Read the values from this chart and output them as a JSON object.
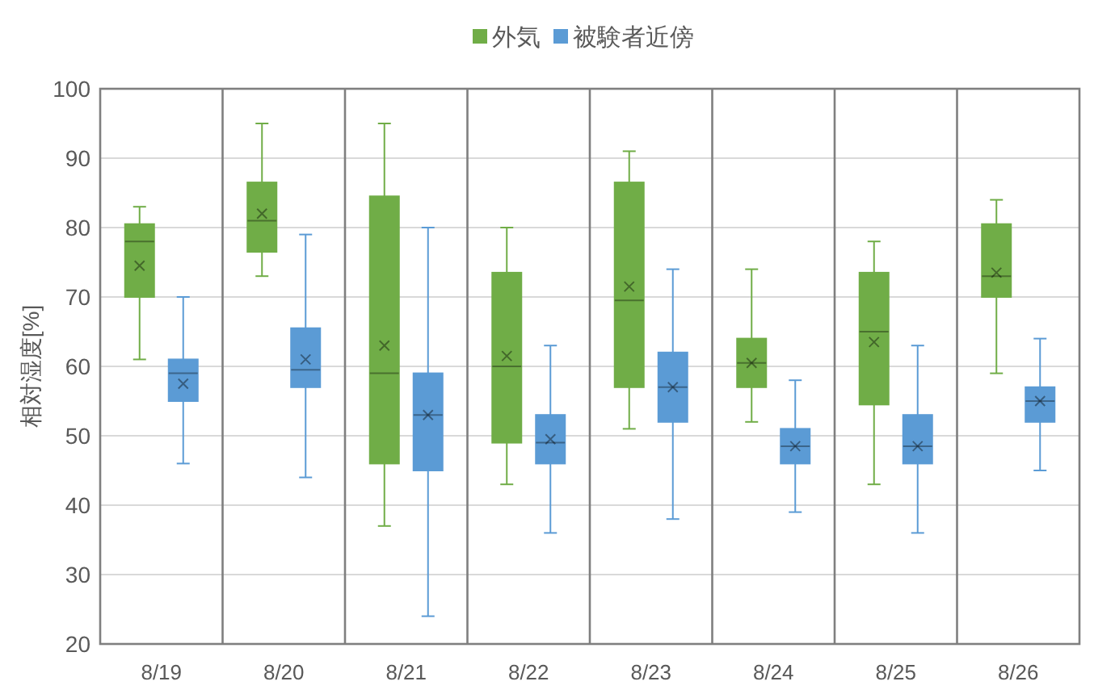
{
  "chart_data": {
    "type": "box",
    "categories": [
      "8/19",
      "8/20",
      "8/21",
      "8/22",
      "8/23",
      "8/24",
      "8/25",
      "8/26"
    ],
    "ylabel": "相対湿度[%]",
    "ylim": [
      20,
      100
    ],
    "yticks": [
      20,
      30,
      40,
      50,
      60,
      70,
      80,
      90,
      100
    ],
    "grid": true,
    "legend": "top",
    "series": [
      {
        "name": "外気",
        "color": "#70ad47",
        "boxes": [
          {
            "low": 61,
            "q1": 70,
            "median": 78,
            "q3": 80.5,
            "high": 83,
            "mean": 74.5
          },
          {
            "low": 73,
            "q1": 76.5,
            "median": 81,
            "q3": 86.5,
            "high": 95,
            "mean": 82
          },
          {
            "low": 37,
            "q1": 46,
            "median": 59,
            "q3": 84.5,
            "high": 95,
            "mean": 63
          },
          {
            "low": 43,
            "q1": 49,
            "median": 60,
            "q3": 73.5,
            "high": 80,
            "mean": 61.5
          },
          {
            "low": 51,
            "q1": 57,
            "median": 69.5,
            "q3": 86.5,
            "high": 91,
            "mean": 71.5
          },
          {
            "low": 52,
            "q1": 57,
            "median": 60.5,
            "q3": 64,
            "high": 74,
            "mean": 60.5
          },
          {
            "low": 43,
            "q1": 54.5,
            "median": 65,
            "q3": 73.5,
            "high": 78,
            "mean": 63.5
          },
          {
            "low": 59,
            "q1": 70,
            "median": 73,
            "q3": 80.5,
            "high": 84,
            "mean": 73.5
          }
        ]
      },
      {
        "name": "被験者近傍",
        "color": "#5b9bd5",
        "boxes": [
          {
            "low": 46,
            "q1": 55,
            "median": 59,
            "q3": 61,
            "high": 70,
            "mean": 57.5
          },
          {
            "low": 44,
            "q1": 57,
            "median": 59.5,
            "q3": 65.5,
            "high": 79,
            "mean": 61
          },
          {
            "low": 24,
            "q1": 45,
            "median": 53,
            "q3": 59,
            "high": 80,
            "mean": 53
          },
          {
            "low": 36,
            "q1": 46,
            "median": 49,
            "q3": 53,
            "high": 63,
            "mean": 49.5
          },
          {
            "low": 38,
            "q1": 52,
            "median": 57,
            "q3": 62,
            "high": 74,
            "mean": 57
          },
          {
            "low": 39,
            "q1": 46,
            "median": 48.5,
            "q3": 51,
            "high": 58,
            "mean": 48.5
          },
          {
            "low": 36,
            "q1": 46,
            "median": 48.5,
            "q3": 53,
            "high": 63,
            "mean": 48.5
          },
          {
            "low": 45,
            "q1": 52,
            "median": 55,
            "q3": 57,
            "high": 64,
            "mean": 55
          }
        ]
      }
    ]
  }
}
